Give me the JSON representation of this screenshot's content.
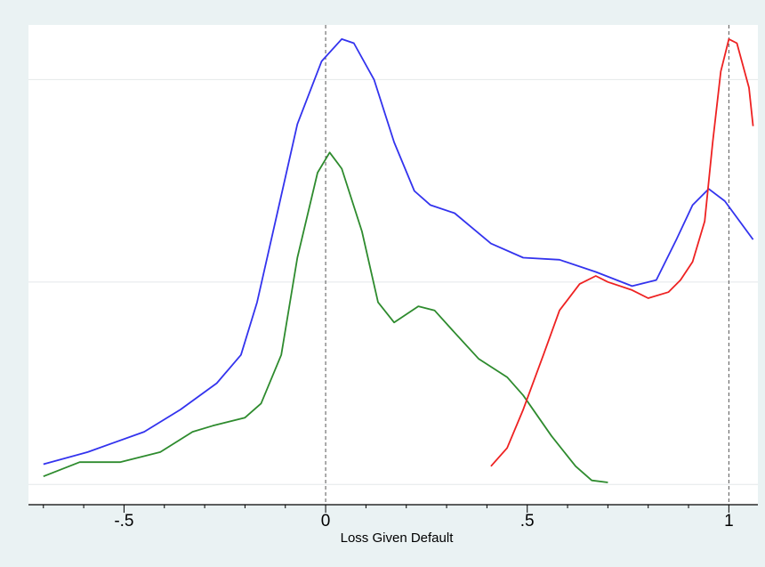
{
  "chart_data": {
    "type": "line",
    "x_label": "Loss Given Default",
    "xlim": [
      -0.737,
      1.072
    ],
    "ylim": [
      -0.1,
      2.27
    ],
    "xticks": [
      {
        "value": -0.5,
        "label": "-.5"
      },
      0,
      {
        "value": 0.5,
        "label": ".5"
      },
      1
    ],
    "xminorticks": [
      -0.7,
      -0.6,
      -0.4,
      -0.3,
      -0.2,
      -0.1,
      0.1,
      0.2,
      0.3,
      0.4,
      0.6,
      0.7,
      0.8,
      0.9
    ],
    "yticks": [
      0,
      1,
      2
    ],
    "grid": true,
    "reference_lines": [
      0,
      1
    ],
    "series": [
      {
        "color": "#3333ee",
        "x": [
          -0.7,
          -0.59,
          -0.45,
          -0.36,
          -0.27,
          -0.21,
          -0.17,
          -0.12,
          -0.07,
          -0.01,
          0.04,
          0.07,
          0.12,
          0.17,
          0.22,
          0.26,
          0.32,
          0.41,
          0.49,
          0.58,
          0.67,
          0.76,
          0.82,
          0.87,
          0.91,
          0.95,
          0.99,
          1.06
        ],
        "values": [
          0.1,
          0.16,
          0.26,
          0.37,
          0.5,
          0.64,
          0.9,
          1.34,
          1.78,
          2.09,
          2.2,
          2.18,
          2.0,
          1.69,
          1.45,
          1.38,
          1.34,
          1.19,
          1.12,
          1.11,
          1.05,
          0.98,
          1.01,
          1.21,
          1.38,
          1.46,
          1.4,
          1.21
        ]
      },
      {
        "color": "#2e8b2e",
        "x": [
          -0.7,
          -0.61,
          -0.51,
          -0.41,
          -0.33,
          -0.28,
          -0.2,
          -0.16,
          -0.11,
          -0.07,
          -0.02,
          0.01,
          0.04,
          0.09,
          0.13,
          0.17,
          0.23,
          0.27,
          0.32,
          0.38,
          0.45,
          0.49,
          0.56,
          0.62,
          0.66,
          0.7
        ],
        "values": [
          0.04,
          0.11,
          0.11,
          0.16,
          0.26,
          0.29,
          0.33,
          0.4,
          0.64,
          1.12,
          1.54,
          1.64,
          1.56,
          1.25,
          0.9,
          0.8,
          0.88,
          0.86,
          0.75,
          0.62,
          0.53,
          0.44,
          0.24,
          0.09,
          0.02,
          0.01
        ]
      },
      {
        "color": "#ee2222",
        "x": [
          0.41,
          0.45,
          0.49,
          0.54,
          0.58,
          0.63,
          0.67,
          0.7,
          0.76,
          0.8,
          0.85,
          0.88,
          0.91,
          0.94,
          0.96,
          0.98,
          1.0,
          1.02,
          1.05,
          1.06
        ],
        "values": [
          0.09,
          0.18,
          0.37,
          0.64,
          0.86,
          0.99,
          1.03,
          1.0,
          0.96,
          0.92,
          0.95,
          1.01,
          1.1,
          1.3,
          1.69,
          2.04,
          2.2,
          2.18,
          1.96,
          1.77
        ]
      }
    ]
  }
}
